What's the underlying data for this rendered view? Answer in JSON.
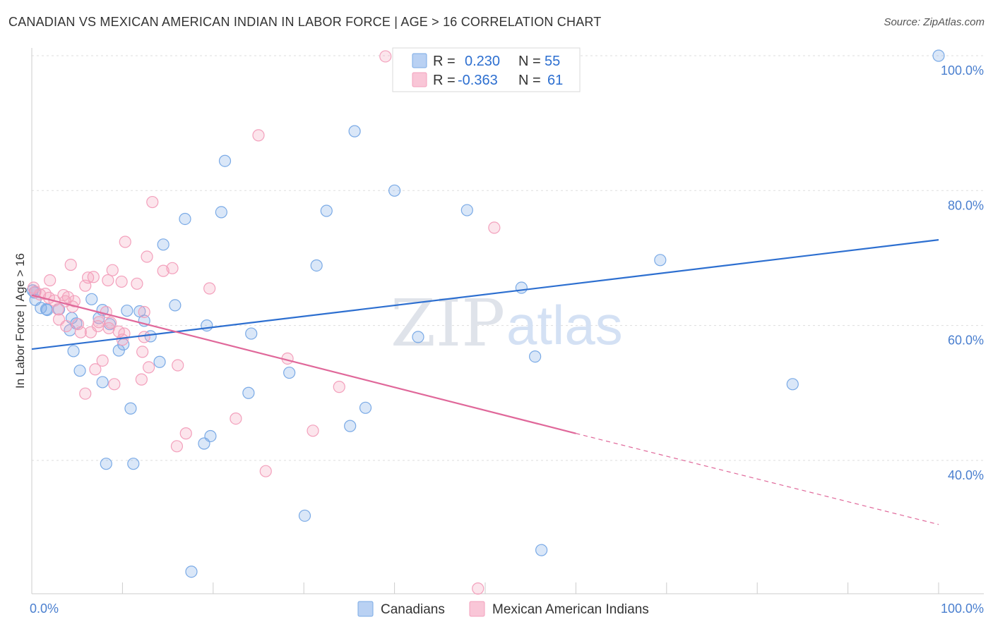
{
  "title": "CANADIAN VS MEXICAN AMERICAN INDIAN IN LABOR FORCE | AGE > 16 CORRELATION CHART",
  "source": "Source: ZipAtlas.com",
  "watermark": {
    "zip": "ZIP",
    "atlas": "atlas"
  },
  "chart_data": {
    "type": "scatter",
    "title": "CANADIAN VS MEXICAN AMERICAN INDIAN IN LABOR FORCE | AGE > 16 CORRELATION CHART",
    "xlabel": "",
    "ylabel": "In Labor Force | Age > 16",
    "xlim": [
      0,
      100
    ],
    "ylim": [
      18.5,
      103.5
    ],
    "x_tick_labels": [
      "0.0%",
      "100.0%"
    ],
    "y_ticks": [
      40,
      60,
      80,
      100
    ],
    "y_tick_labels": [
      "40.0%",
      "60.0%",
      "80.0%",
      "100.0%"
    ],
    "grid": true,
    "legend_position": "top-center",
    "stats": [
      {
        "r_label": "R =",
        "r_value": "0.230",
        "n_label": "N =",
        "n_value": "55"
      },
      {
        "r_label": "R =",
        "r_value": "-0.363",
        "n_label": "N =",
        "n_value": "61"
      }
    ],
    "series": [
      {
        "name": "Canadians",
        "color": "#7aaae6",
        "line_color": "#2d6fd0",
        "trend": {
          "x0": 0,
          "y0": 56.5,
          "x1": 100,
          "y1": 72.7
        },
        "points": [
          [
            0.1,
            65.2
          ],
          [
            0.4,
            63.8
          ],
          [
            1.0,
            62.6
          ],
          [
            1.6,
            62.4
          ],
          [
            1.7,
            62.3
          ],
          [
            3.0,
            62.4
          ],
          [
            4.4,
            61.1
          ],
          [
            4.9,
            60.3
          ],
          [
            4.2,
            59.3
          ],
          [
            4.6,
            56.2
          ],
          [
            5.3,
            53.3
          ],
          [
            6.6,
            63.9
          ],
          [
            7.4,
            61.1
          ],
          [
            7.8,
            62.3
          ],
          [
            7.8,
            51.6
          ],
          [
            8.2,
            39.5
          ],
          [
            8.6,
            60.2
          ],
          [
            9.6,
            56.3
          ],
          [
            10.1,
            57.2
          ],
          [
            10.5,
            62.2
          ],
          [
            10.9,
            47.7
          ],
          [
            11.2,
            39.5
          ],
          [
            11.9,
            62.1
          ],
          [
            12.4,
            60.7
          ],
          [
            13.1,
            58.4
          ],
          [
            14.1,
            54.6
          ],
          [
            14.5,
            72.0
          ],
          [
            15.8,
            63.0
          ],
          [
            16.9,
            75.8
          ],
          [
            17.6,
            23.5
          ],
          [
            19.0,
            42.5
          ],
          [
            19.3,
            60.0
          ],
          [
            19.7,
            43.6
          ],
          [
            20.9,
            76.8
          ],
          [
            21.3,
            84.4
          ],
          [
            23.9,
            50.0
          ],
          [
            24.2,
            58.8
          ],
          [
            28.4,
            53.0
          ],
          [
            30.1,
            31.8
          ],
          [
            31.4,
            68.9
          ],
          [
            32.5,
            77.0
          ],
          [
            35.1,
            45.1
          ],
          [
            35.6,
            88.8
          ],
          [
            36.8,
            47.8
          ],
          [
            40.0,
            80.0
          ],
          [
            42.3,
            100.0
          ],
          [
            42.6,
            58.3
          ],
          [
            48.0,
            77.1
          ],
          [
            54.0,
            65.6
          ],
          [
            55.5,
            55.4
          ],
          [
            56.2,
            26.7
          ],
          [
            69.3,
            69.7
          ],
          [
            83.9,
            51.3
          ],
          [
            100.0,
            100.0
          ],
          [
            0.3,
            64.9
          ]
        ]
      },
      {
        "name": "Mexican American Indians",
        "color": "#f3a0bc",
        "line_color": "#e0689a",
        "trend": {
          "x0": 0,
          "y0": 64.5,
          "x1": 60,
          "y1": 44.0,
          "dash_x1": 100,
          "dash_y1": 30.5
        },
        "points": [
          [
            0.2,
            65.6
          ],
          [
            0.4,
            65.0
          ],
          [
            0.9,
            64.6
          ],
          [
            1.5,
            64.7
          ],
          [
            1.9,
            64.1
          ],
          [
            2.0,
            66.7
          ],
          [
            2.5,
            63.7
          ],
          [
            2.9,
            62.4
          ],
          [
            3.0,
            60.9
          ],
          [
            3.5,
            64.5
          ],
          [
            3.7,
            63.6
          ],
          [
            4.0,
            64.2
          ],
          [
            4.3,
            69.0
          ],
          [
            4.5,
            62.8
          ],
          [
            4.7,
            63.6
          ],
          [
            5.1,
            60.2
          ],
          [
            5.4,
            59.0
          ],
          [
            5.9,
            49.9
          ],
          [
            5.9,
            65.9
          ],
          [
            6.2,
            67.1
          ],
          [
            6.5,
            59.0
          ],
          [
            6.8,
            67.2
          ],
          [
            7.0,
            53.5
          ],
          [
            7.3,
            59.9
          ],
          [
            7.4,
            60.5
          ],
          [
            7.8,
            54.8
          ],
          [
            8.2,
            62.0
          ],
          [
            8.4,
            66.7
          ],
          [
            8.7,
            60.4
          ],
          [
            8.9,
            68.2
          ],
          [
            9.1,
            51.3
          ],
          [
            9.6,
            59.1
          ],
          [
            9.9,
            66.5
          ],
          [
            10.0,
            57.9
          ],
          [
            10.2,
            58.8
          ],
          [
            10.3,
            72.4
          ],
          [
            11.6,
            66.2
          ],
          [
            12.1,
            52.0
          ],
          [
            12.2,
            56.1
          ],
          [
            12.4,
            58.3
          ],
          [
            12.7,
            70.2
          ],
          [
            12.9,
            53.8
          ],
          [
            13.3,
            78.3
          ],
          [
            14.5,
            68.1
          ],
          [
            15.5,
            68.5
          ],
          [
            16.0,
            42.1
          ],
          [
            16.1,
            54.1
          ],
          [
            17.0,
            44.0
          ],
          [
            19.6,
            65.5
          ],
          [
            22.5,
            46.2
          ],
          [
            25.0,
            88.2
          ],
          [
            25.8,
            38.4
          ],
          [
            28.2,
            55.1
          ],
          [
            31.0,
            44.4
          ],
          [
            33.9,
            50.9
          ],
          [
            39.0,
            99.9
          ],
          [
            49.2,
            21.0
          ],
          [
            51.0,
            74.5
          ],
          [
            12.4,
            62.0
          ],
          [
            8.5,
            59.6
          ],
          [
            3.8,
            59.9
          ]
        ]
      }
    ]
  },
  "bottom_legend": [
    {
      "label": "Canadians",
      "fill": "#b9d1f3",
      "stroke": "#7aaae6"
    },
    {
      "label": "Mexican American Indians",
      "fill": "#f9c6d7",
      "stroke": "#f3a0bc"
    }
  ]
}
